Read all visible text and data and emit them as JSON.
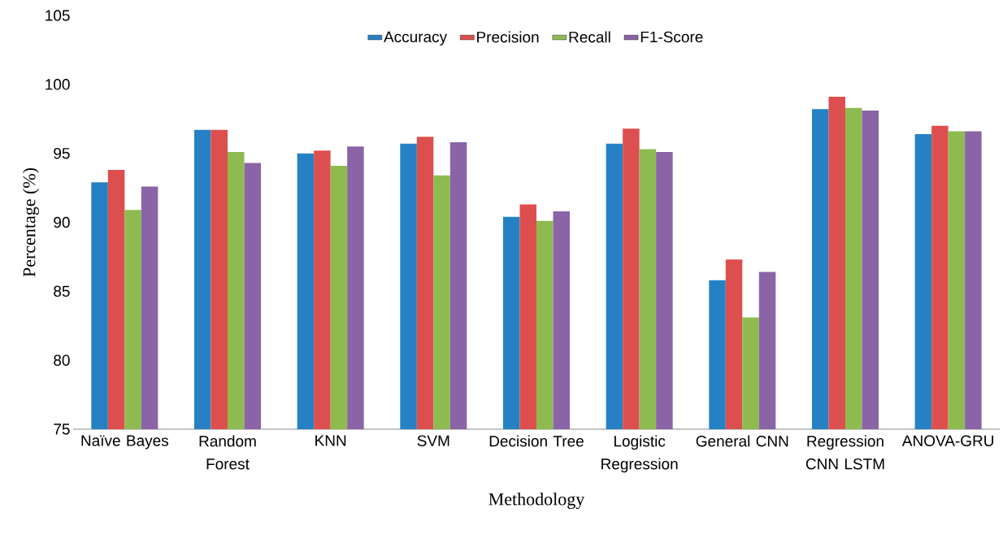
{
  "chart_data": {
    "type": "bar",
    "xlabel": "Methodology",
    "ylabel": "Percentage (%)",
    "categories": [
      "Naïve Bayes",
      "Random Forest",
      "KNN",
      "SVM",
      "Decision Tree",
      "Logistic Regression",
      "General CNN",
      "Regression CNN LSTM",
      "ANOVA-GRU"
    ],
    "series": [
      {
        "name": "Accuracy",
        "color": "#2581c4",
        "values": [
          92.9,
          96.7,
          95.0,
          95.7,
          90.4,
          95.7,
          85.8,
          98.2,
          96.4
        ]
      },
      {
        "name": "Precision",
        "color": "#dd4f4e",
        "values": [
          93.8,
          96.7,
          95.2,
          96.2,
          91.3,
          96.8,
          87.3,
          99.1,
          97.0
        ]
      },
      {
        "name": "Recall",
        "color": "#8ebb50",
        "values": [
          90.9,
          95.1,
          94.1,
          93.4,
          90.1,
          95.3,
          83.1,
          98.3,
          96.6
        ]
      },
      {
        "name": "F1-Score",
        "color": "#8a64a6",
        "values": [
          92.6,
          94.3,
          95.5,
          95.8,
          90.8,
          95.1,
          86.4,
          98.1,
          96.6
        ]
      }
    ],
    "ylim": [
      75,
      105
    ],
    "yticks": [
      75,
      80,
      85,
      90,
      95,
      100,
      105
    ],
    "legend": "top"
  }
}
